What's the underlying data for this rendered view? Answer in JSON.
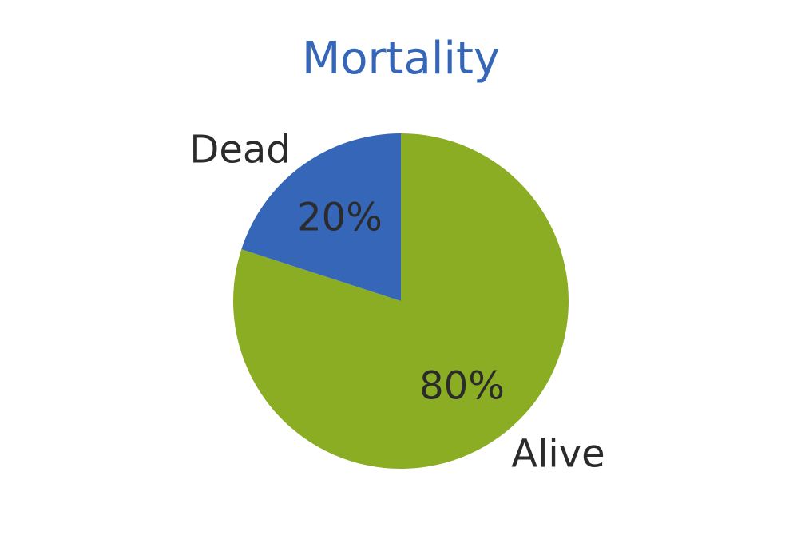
{
  "chart_data": {
    "type": "pie",
    "title": "Mortality",
    "slices": [
      {
        "label": "Alive",
        "value": 80,
        "display": "80%",
        "color": "#8aad24"
      },
      {
        "label": "Dead",
        "value": 20,
        "display": "20%",
        "color": "#3566b8"
      }
    ],
    "start": "12 o'clock",
    "direction": "clockwise",
    "legend": "none",
    "colors": {
      "title": "#3566b8",
      "text": "#2b2b2b"
    }
  }
}
